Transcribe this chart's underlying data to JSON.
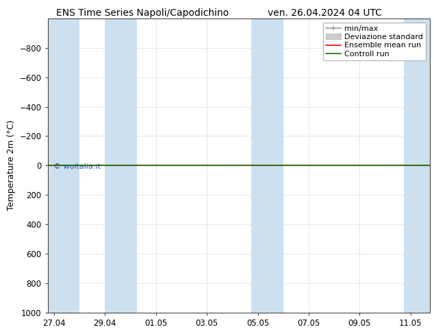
{
  "title_left": "ENS Time Series Napoli/Capodichino",
  "title_right": "ven. 26.04.2024 04 UTC",
  "ylabel": "Temperature 2m (°C)",
  "ylim_bottom": 1000,
  "ylim_top": -1000,
  "yticks": [
    1000,
    800,
    600,
    400,
    200,
    0,
    -200,
    -400,
    -600,
    -800
  ],
  "bg_color": "#ffffff",
  "plot_bg_color": "#ffffff",
  "shaded_band_color": "#cce0f0",
  "watermark": "© woitalia.it",
  "watermark_color": "#3355bb",
  "ensemble_mean_color": "#ff0000",
  "control_run_color": "#007700",
  "minmax_color": "#999999",
  "std_band_color": "#cccccc",
  "x_tick_labels": [
    "27.04",
    "29.04",
    "01.05",
    "03.05",
    "05.05",
    "07.05",
    "09.05",
    "11.05"
  ],
  "x_tick_positions": [
    0,
    2,
    4,
    6,
    8,
    10,
    12,
    14
  ],
  "shaded_bands": [
    {
      "x_start": -0.25,
      "x_end": 1.0
    },
    {
      "x_start": 2.0,
      "x_end": 3.25
    },
    {
      "x_start": 7.75,
      "x_end": 9.0
    },
    {
      "x_start": 13.75,
      "x_end": 15.0
    }
  ],
  "x_min": -0.25,
  "x_max": 14.75,
  "legend_labels": [
    "min/max",
    "Deviazione standard",
    "Ensemble mean run",
    "Controll run"
  ],
  "title_fontsize": 10,
  "axis_label_fontsize": 9,
  "tick_fontsize": 8.5,
  "legend_fontsize": 8
}
